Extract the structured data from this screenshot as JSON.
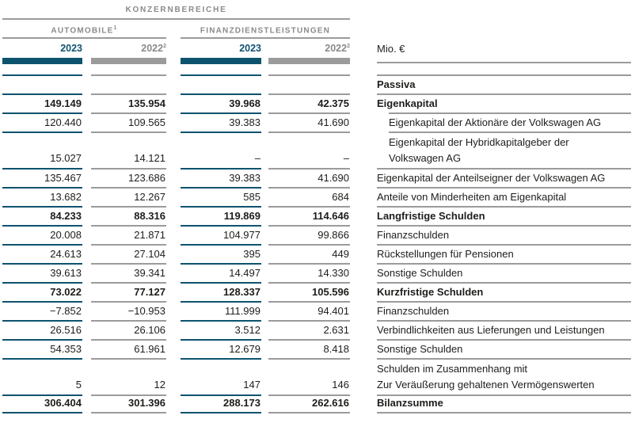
{
  "colors": {
    "accent": "#0e536e",
    "rule_gray": "#9b9b9b",
    "header_text_gray": "#8a8a8a",
    "text": "#1d1d1b"
  },
  "header": {
    "group_title": "KONZERNBEREICHE",
    "unit_label": "Mio. €",
    "segments": [
      {
        "label": "AUTOMOBILE",
        "sup": "1"
      },
      {
        "label": "FINANZDIENSTLEISTUNGEN",
        "sup": ""
      }
    ],
    "year_columns": [
      {
        "label": "2023",
        "sup": "",
        "kind": "current"
      },
      {
        "label": "2022",
        "sup": "2",
        "kind": "prior"
      },
      {
        "label": "2023",
        "sup": "",
        "kind": "current"
      },
      {
        "label": "2022",
        "sup": "2",
        "kind": "prior"
      }
    ]
  },
  "table": {
    "rows": [
      {
        "lines": [
          ""
        ],
        "values": [
          "",
          "",
          "",
          ""
        ],
        "empty": true
      },
      {
        "lines": [
          "Passiva"
        ],
        "values": [
          "",
          "",
          "",
          ""
        ],
        "bold": true
      },
      {
        "lines": [
          "Eigenkapital"
        ],
        "values": [
          "149.149",
          "135.954",
          "39.968",
          "42.375"
        ],
        "bold": true
      },
      {
        "lines": [
          "Eigenkapital der Aktionäre der Volkswagen AG"
        ],
        "values": [
          "120.440",
          "109.565",
          "39.383",
          "41.690"
        ],
        "indent": true
      },
      {
        "lines": [
          "Eigenkapital der Hybridkapitalgeber der",
          "Volkswagen AG"
        ],
        "values": [
          "15.027",
          "14.121",
          "–",
          "–"
        ],
        "indent": true,
        "tall": true
      },
      {
        "lines": [
          "Eigenkapital der Anteilseigner der Volkswagen AG"
        ],
        "values": [
          "135.467",
          "123.686",
          "39.383",
          "41.690"
        ]
      },
      {
        "lines": [
          "Anteile von Minderheiten am Eigenkapital"
        ],
        "values": [
          "13.682",
          "12.267",
          "585",
          "684"
        ]
      },
      {
        "lines": [
          "Langfristige Schulden"
        ],
        "values": [
          "84.233",
          "88.316",
          "119.869",
          "114.646"
        ],
        "bold": true
      },
      {
        "lines": [
          "Finanzschulden"
        ],
        "values": [
          "20.008",
          "21.871",
          "104.977",
          "99.866"
        ]
      },
      {
        "lines": [
          "Rückstellungen für Pensionen"
        ],
        "values": [
          "24.613",
          "27.104",
          "395",
          "449"
        ]
      },
      {
        "lines": [
          "Sonstige Schulden"
        ],
        "values": [
          "39.613",
          "39.341",
          "14.497",
          "14.330"
        ]
      },
      {
        "lines": [
          "Kurzfristige Schulden"
        ],
        "values": [
          "73.022",
          "77.127",
          "128.337",
          "105.596"
        ],
        "bold": true
      },
      {
        "lines": [
          "Finanzschulden"
        ],
        "values": [
          "−7.852",
          "−10.953",
          "111.999",
          "94.401"
        ]
      },
      {
        "lines": [
          "Verbindlichkeiten aus Lieferungen und Leistungen"
        ],
        "values": [
          "26.516",
          "26.106",
          "3.512",
          "2.631"
        ]
      },
      {
        "lines": [
          "Sonstige Schulden"
        ],
        "values": [
          "54.353",
          "61.961",
          "12.679",
          "8.418"
        ]
      },
      {
        "lines": [
          "Schulden im Zusammenhang mit",
          "Zur Veräußerung gehaltenen Vermögenswerten"
        ],
        "values": [
          "5",
          "12",
          "147",
          "146"
        ],
        "tall": true
      },
      {
        "lines": [
          "Bilanzsumme"
        ],
        "values": [
          "306.404",
          "301.396",
          "288.173",
          "262.616"
        ],
        "bold": true
      }
    ]
  }
}
